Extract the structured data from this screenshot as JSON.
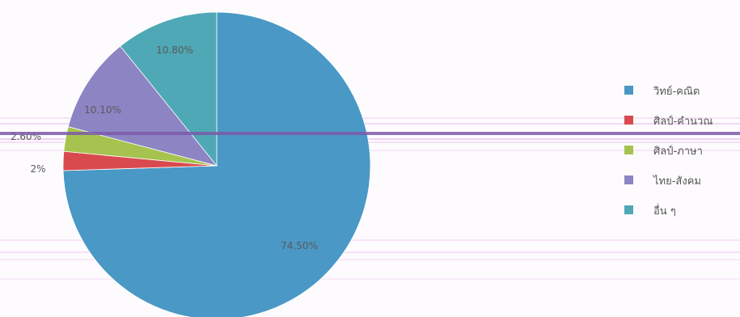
{
  "chart_data": {
    "type": "pie",
    "slices": [
      {
        "label": "วิทย์-คณิต",
        "value": 74.5,
        "display": "74.50%",
        "color": "#4a98c5"
      },
      {
        "label": "ศิลป์-คำนวณ",
        "value": 2.0,
        "display": "2%",
        "color": "#d94a4f"
      },
      {
        "label": "ศิลป์-ภาษา",
        "value": 2.6,
        "display": "2.60%",
        "color": "#a6c34f"
      },
      {
        "label": "ไทย-สังคม",
        "value": 10.1,
        "display": "10.10%",
        "color": "#8d84c4"
      },
      {
        "label": "อื่น ๆ",
        "value": 10.8,
        "display": "10.80%",
        "color": "#4fa8b5"
      }
    ],
    "legend_position": "right"
  }
}
